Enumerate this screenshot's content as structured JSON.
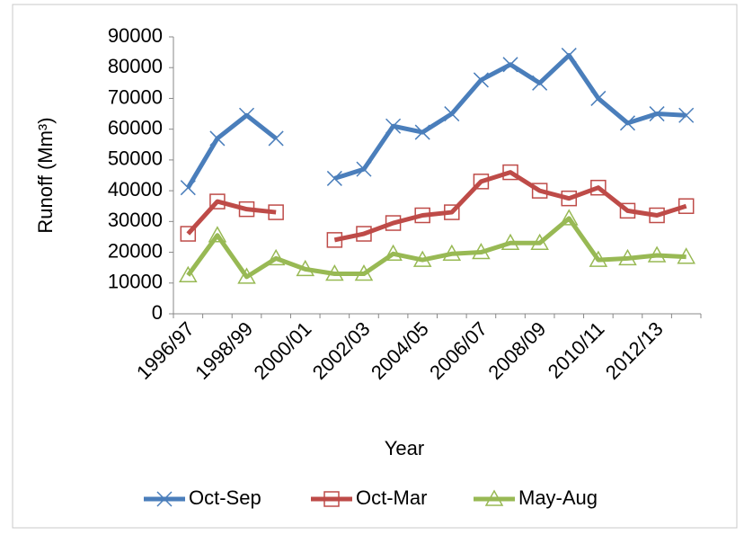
{
  "chart_data": {
    "type": "line",
    "y_label": "Runoff (Mm³)",
    "x_label": "Year",
    "categories": [
      "1996/97",
      null,
      "1998/99",
      null,
      "2000/01",
      null,
      "2002/03",
      null,
      "2004/05",
      null,
      "2006/07",
      null,
      "2008/09",
      null,
      "2010/11",
      null,
      "2012/13",
      null
    ],
    "series": [
      {
        "name": "Oct-Sep",
        "color": "#4a7ebb",
        "marker": "x",
        "values": [
          41000,
          57000,
          64500,
          57000,
          null,
          44000,
          47000,
          61000,
          59000,
          65000,
          76000,
          81000,
          75000,
          84000,
          70000,
          62000,
          65000,
          64500
        ]
      },
      {
        "name": "Oct-Mar",
        "color": "#be4b48",
        "marker": "square",
        "values": [
          26000,
          36500,
          34000,
          33000,
          null,
          24000,
          26000,
          29500,
          32000,
          33000,
          43000,
          46000,
          40000,
          37500,
          41000,
          33500,
          32000,
          35000
        ]
      },
      {
        "name": "May-Aug",
        "color": "#98b954",
        "marker": "triangle",
        "values": [
          12500,
          25500,
          12000,
          18000,
          14500,
          13000,
          13000,
          19500,
          17500,
          19500,
          20000,
          23000,
          23000,
          31000,
          17500,
          18000,
          19000,
          18500
        ]
      }
    ],
    "ylim": [
      0,
      90000
    ],
    "yticks": [
      0,
      10000,
      20000,
      30000,
      40000,
      50000,
      60000,
      70000,
      80000,
      90000
    ],
    "grid": false,
    "legend": "bottom"
  }
}
